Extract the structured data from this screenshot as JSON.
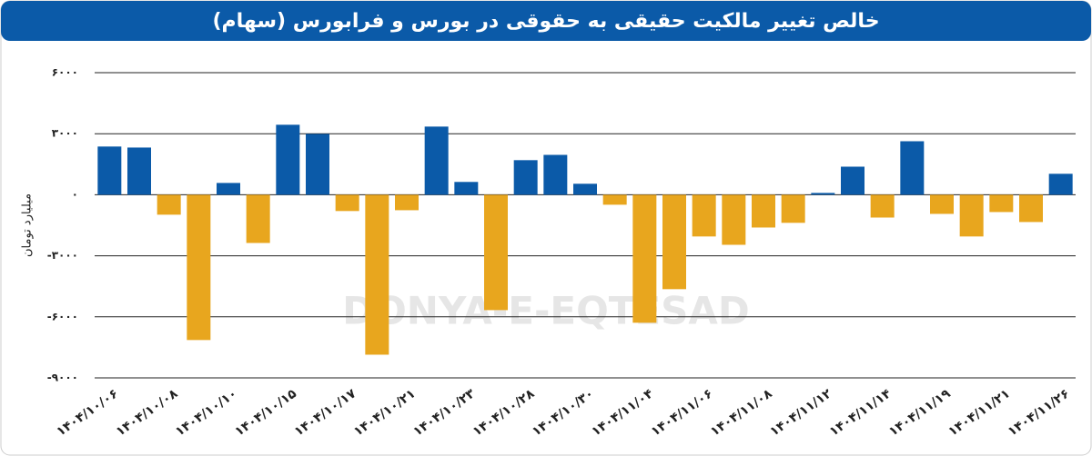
{
  "chart_data": {
    "type": "bar",
    "title": "خالص تغییر مالکیت حقیقی به حقوقی در بورس و فرابورس (سهام)",
    "y_label": "میلیارد تومان",
    "watermark": "DONYA-E-EQTESAD",
    "categories": [
      "۱۴۰۴/۱۰/۰۶",
      null,
      "۱۴۰۴/۱۰/۰۸",
      null,
      "۱۴۰۴/۱۰/۱۰",
      null,
      "۱۴۰۴/۱۰/۱۵",
      null,
      "۱۴۰۴/۱۰/۱۷",
      null,
      "۱۴۰۴/۱۰/۲۱",
      null,
      "۱۴۰۴/۱۰/۲۳",
      null,
      "۱۴۰۴/۱۰/۲۸",
      null,
      "۱۴۰۴/۱۰/۳۰",
      null,
      "۱۴۰۴/۱۱/۰۴",
      null,
      "۱۴۰۴/۱۱/۰۶",
      null,
      "۱۴۰۴/۱۱/۰۸",
      null,
      "۱۴۰۴/۱۱/۱۲",
      null,
      "۱۴۰۴/۱۱/۱۴",
      null,
      "۱۴۰۴/۱۱/۱۹",
      null,
      "۱۴۰۴/۱۱/۲۱",
      null,
      "۱۴۰۴/۱۱/۲۶"
    ],
    "values": [
      2370,
      2320,
      -980,
      -7140,
      580,
      -2370,
      3440,
      2990,
      -800,
      -7860,
      -760,
      3350,
      630,
      -5670,
      1700,
      1960,
      540,
      -490,
      -6290,
      -4640,
      -2050,
      -2460,
      -1610,
      -1380,
      90,
      1380,
      -1120,
      2630,
      -940,
      -2050,
      -850,
      -1340,
      1030
    ],
    "positive_color": "#0b5aa8",
    "negative_color": "#e8a61e",
    "ylim": [
      -9000,
      6000
    ],
    "yticks": [
      {
        "value": -9000,
        "label": "-۹۰۰۰"
      },
      {
        "value": -6000,
        "label": "-۶۰۰۰"
      },
      {
        "value": -3000,
        "label": "-۳۰۰۰"
      },
      {
        "value": 0,
        "label": "۰"
      },
      {
        "value": 3000,
        "label": "۳۰۰۰"
      },
      {
        "value": 6000,
        "label": "۶۰۰۰"
      }
    ],
    "grid": true
  }
}
